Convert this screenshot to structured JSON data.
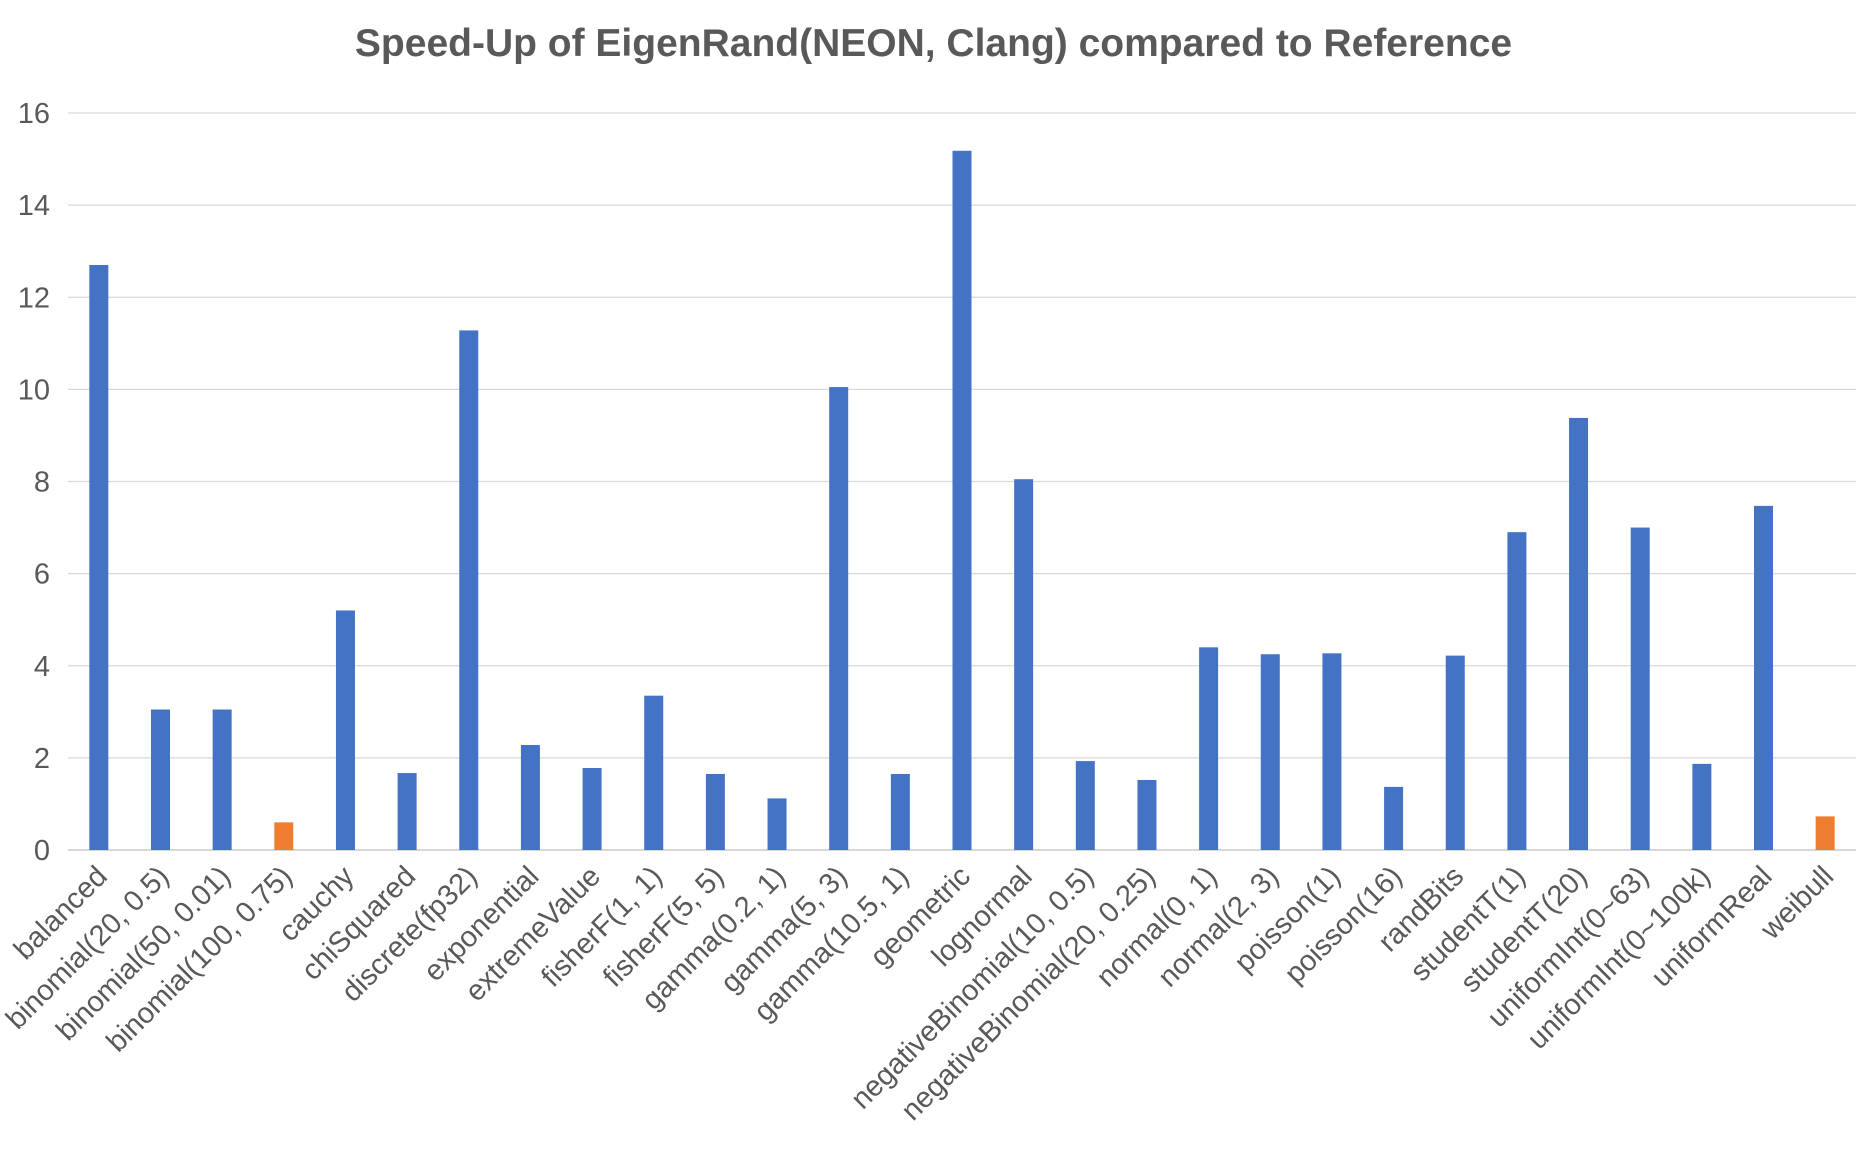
{
  "chart_data": {
    "type": "bar",
    "title": "Speed-Up of EigenRand(NEON, Clang) compared to Reference",
    "xlabel": "",
    "ylabel": "",
    "ylim": [
      0,
      16
    ],
    "yticks": [
      0,
      2,
      4,
      6,
      8,
      10,
      12,
      14,
      16
    ],
    "grid": true,
    "legend": "none",
    "colors": {
      "default": "#4472C4",
      "below_one": "#ED7D31"
    },
    "categories": [
      "balanced",
      "binomial(20, 0.5)",
      "binomial(50, 0.01)",
      "binomial(100, 0.75)",
      "cauchy",
      "chiSquared",
      "discrete(fp32)",
      "exponential",
      "extremeValue",
      "fisherF(1, 1)",
      "fisherF(5, 5)",
      "gamma(0.2, 1)",
      "gamma(5, 3)",
      "gamma(10.5, 1)",
      "geometric",
      "lognormal",
      "negativeBinomial(10, 0.5)",
      "negativeBinomial(20, 0.25)",
      "normal(0, 1)",
      "normal(2, 3)",
      "poisson(1)",
      "poisson(16)",
      "randBits",
      "studentT(1)",
      "studentT(20)",
      "uniformInt(0~63)",
      "uniformInt(0~100k)",
      "uniformReal",
      "weibull"
    ],
    "values": [
      12.7,
      3.05,
      3.05,
      0.6,
      5.2,
      1.67,
      11.28,
      2.28,
      1.78,
      3.35,
      1.65,
      1.12,
      10.05,
      1.65,
      15.18,
      8.05,
      1.93,
      1.52,
      4.4,
      4.25,
      4.27,
      1.37,
      4.22,
      6.9,
      9.38,
      7.0,
      1.87,
      7.47,
      0.73
    ]
  }
}
